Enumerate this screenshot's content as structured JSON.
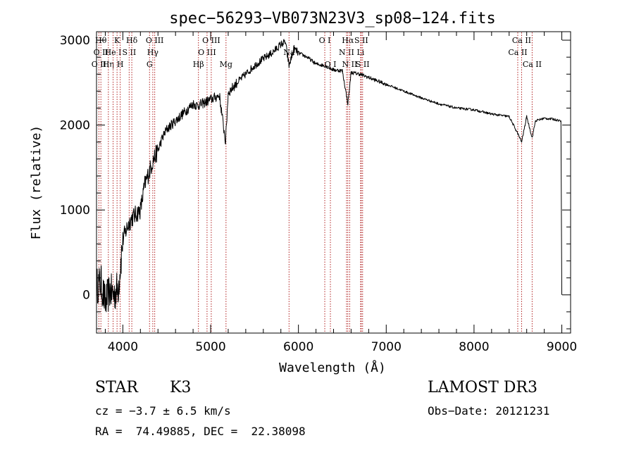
{
  "chart_data": {
    "type": "line",
    "title": "spec−56293−VB073N23V3_sp08−124.fits",
    "xlabel": "Wavelength (Å)",
    "ylabel": "Flux (relative)",
    "xlim": [
      3700,
      9100
    ],
    "ylim": [
      -450,
      3100
    ],
    "xticks": [
      4000,
      5000,
      6000,
      7000,
      8000,
      9000
    ],
    "xtick_labels": [
      "4000",
      "5000",
      "6000",
      "7000",
      "8000",
      "9000"
    ],
    "yticks": [
      0,
      1000,
      2000,
      3000
    ],
    "ytick_labels": [
      "0",
      "1000",
      "2000",
      "3000"
    ],
    "series": [
      {
        "name": "flux",
        "x": [
          3700,
          3750,
          3800,
          3850,
          3900,
          3950,
          4000,
          4050,
          4100,
          4150,
          4200,
          4250,
          4300,
          4350,
          4400,
          4450,
          4500,
          4600,
          4700,
          4800,
          4850,
          4900,
          5000,
          5100,
          5170,
          5200,
          5300,
          5400,
          5500,
          5600,
          5700,
          5800,
          5850,
          5893,
          5950,
          6000,
          6100,
          6200,
          6300,
          6400,
          6500,
          6563,
          6600,
          6700,
          6800,
          6900,
          7000,
          7200,
          7400,
          7600,
          7800,
          8000,
          8200,
          8400,
          8498,
          8542,
          8600,
          8662,
          8700,
          8800,
          8900,
          8990,
          9000
        ],
        "y": [
          100,
          150,
          -100,
          50,
          0,
          100,
          650,
          800,
          900,
          950,
          1000,
          1300,
          1450,
          1600,
          1700,
          1850,
          1950,
          2050,
          2150,
          2250,
          2230,
          2250,
          2300,
          2350,
          1800,
          2380,
          2500,
          2600,
          2700,
          2780,
          2850,
          2950,
          2980,
          2700,
          2900,
          2850,
          2800,
          2720,
          2700,
          2650,
          2640,
          2250,
          2620,
          2600,
          2560,
          2520,
          2480,
          2400,
          2320,
          2250,
          2200,
          2180,
          2130,
          2100,
          1900,
          1800,
          2100,
          1850,
          2050,
          2080,
          2070,
          2050,
          0
        ]
      }
    ],
    "lines": [
      {
        "wavelength": 3727,
        "labels": [
          "O II"
        ],
        "rows": [
          2
        ]
      },
      {
        "wavelength": 3750,
        "labels": [
          "Hθ",
          "O II"
        ],
        "rows": [
          0,
          1
        ]
      },
      {
        "wavelength": 3835,
        "labels": [
          "Hη"
        ],
        "rows": [
          2
        ]
      },
      {
        "wavelength": 3889,
        "labels": [
          "He I"
        ],
        "rows": [
          1
        ]
      },
      {
        "wavelength": 3934,
        "labels": [
          "K"
        ],
        "rows": [
          0
        ]
      },
      {
        "wavelength": 3970,
        "labels": [
          "H"
        ],
        "rows": [
          2
        ]
      },
      {
        "wavelength": 4072,
        "labels": [
          "S II"
        ],
        "rows": [
          1
        ]
      },
      {
        "wavelength": 4102,
        "labels": [
          "Hδ"
        ],
        "rows": [
          0
        ]
      },
      {
        "wavelength": 4304,
        "labels": [
          "G"
        ],
        "rows": [
          2
        ]
      },
      {
        "wavelength": 4341,
        "labels": [
          "Hγ"
        ],
        "rows": [
          1
        ]
      },
      {
        "wavelength": 4363,
        "labels": [
          "O III"
        ],
        "rows": [
          0
        ]
      },
      {
        "wavelength": 4861,
        "labels": [
          "Hβ"
        ],
        "rows": [
          2
        ]
      },
      {
        "wavelength": 4959,
        "labels": [
          "O III"
        ],
        "rows": [
          1
        ]
      },
      {
        "wavelength": 5007,
        "labels": [
          "O III"
        ],
        "rows": [
          0
        ]
      },
      {
        "wavelength": 5175,
        "labels": [
          "Mg"
        ],
        "rows": [
          2
        ]
      },
      {
        "wavelength": 5893,
        "labels": [
          "Na"
        ],
        "rows": [
          1
        ]
      },
      {
        "wavelength": 6300,
        "labels": [
          "O I"
        ],
        "rows": [
          0
        ]
      },
      {
        "wavelength": 6364,
        "labels": [
          "O I"
        ],
        "rows": [
          2
        ]
      },
      {
        "wavelength": 6548,
        "labels": [
          "N II"
        ],
        "rows": [
          1
        ]
      },
      {
        "wavelength": 6563,
        "labels": [
          "Hα"
        ],
        "rows": [
          0
        ]
      },
      {
        "wavelength": 6584,
        "labels": [
          "N II"
        ],
        "rows": [
          2
        ]
      },
      {
        "wavelength": 6708,
        "labels": [
          "Li"
        ],
        "rows": [
          1
        ]
      },
      {
        "wavelength": 6716,
        "labels": [
          "S II"
        ],
        "rows": [
          0
        ]
      },
      {
        "wavelength": 6731,
        "labels": [
          "S II"
        ],
        "rows": [
          2
        ]
      },
      {
        "wavelength": 8498,
        "labels": [
          "Ca II"
        ],
        "rows": [
          1
        ]
      },
      {
        "wavelength": 8542,
        "labels": [
          "Ca II"
        ],
        "rows": [
          0
        ]
      },
      {
        "wavelength": 8662,
        "labels": [
          "Ca II"
        ],
        "rows": [
          2
        ]
      }
    ],
    "line_color": "#b22222",
    "grid": false,
    "legend": "none"
  },
  "info": {
    "class": "STAR",
    "subclass": "K3",
    "survey": "LAMOST DR3",
    "cz": "cz = −3.7 ± 6.5 km/s",
    "obs_date": "Obs−Date: 20121231",
    "coords": "RA =  74.49885, DEC =  22.38098"
  }
}
